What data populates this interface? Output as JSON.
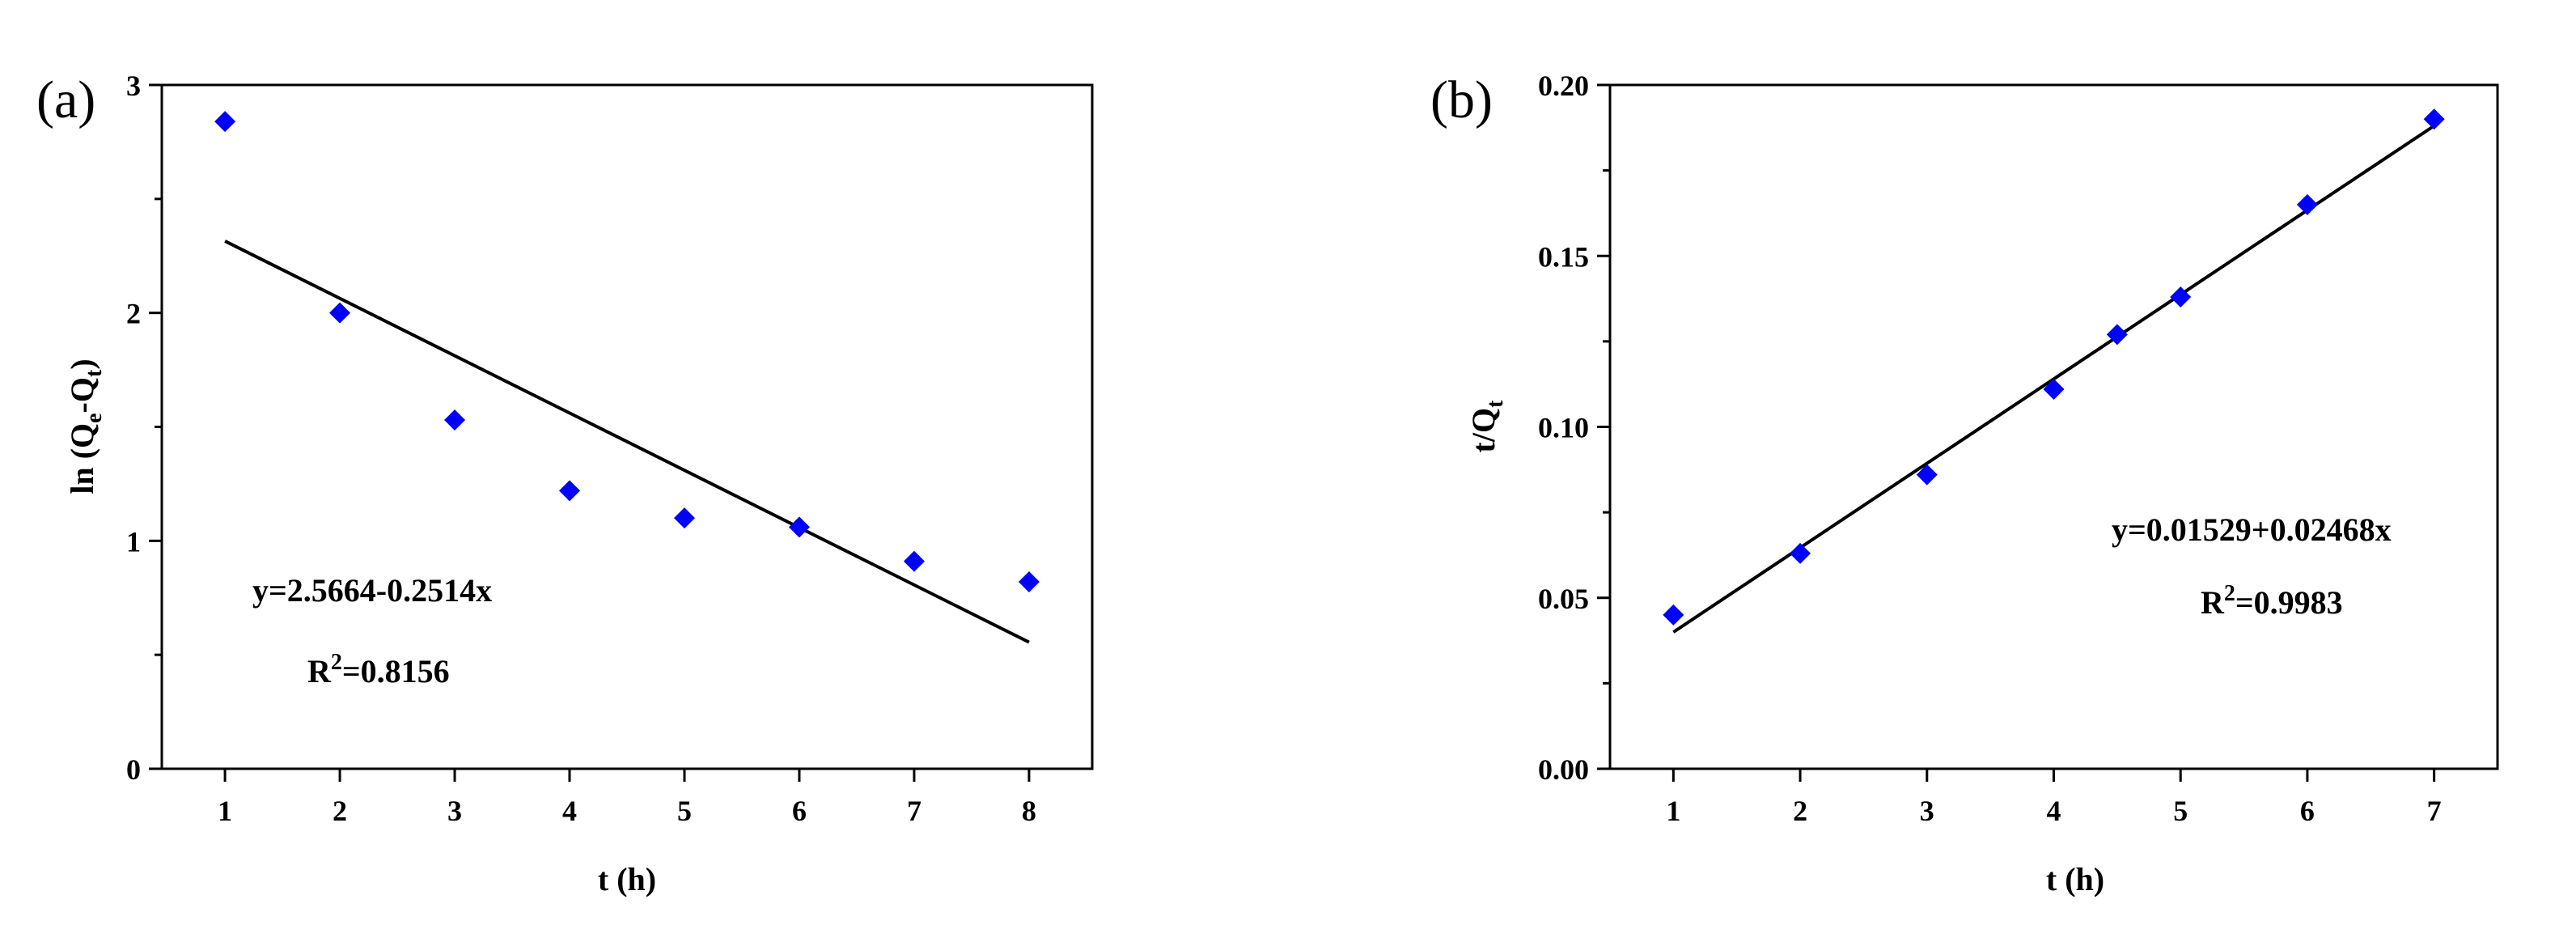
{
  "chart_data": [
    {
      "type": "scatter",
      "panel_label": "(a)",
      "title": "",
      "xlabel": "t (h)",
      "ylabel": {
        "main": "ln (Q",
        "sub1": "e",
        "mid": "-Q",
        "sub2": "t",
        "end": ")"
      },
      "xlim": [
        0.45,
        8.55
      ],
      "ylim": [
        0,
        3
      ],
      "xticks": [
        1,
        2,
        3,
        4,
        5,
        6,
        7,
        8
      ],
      "yticks": [
        0,
        1,
        2,
        3
      ],
      "series": [
        {
          "x": [
            1,
            2,
            3,
            4,
            5,
            6,
            7,
            8
          ],
          "y": [
            2.84,
            2.0,
            1.53,
            1.22,
            1.1,
            1.06,
            0.91,
            0.82
          ],
          "marker": "diamond",
          "color": "#0000ff"
        }
      ],
      "fit": {
        "intercept": 2.5664,
        "slope": -0.2514,
        "x_range": [
          1,
          8
        ],
        "color": "#000000"
      },
      "annotations": {
        "equation": "y=2.5664-0.2514x",
        "r2_prefix": "R",
        "r2_sup": "2",
        "r2_value": "=0.8156"
      },
      "grid": false
    },
    {
      "type": "scatter",
      "panel_label": "(b)",
      "title": "",
      "xlabel": "t (h)",
      "ylabel": {
        "main": "t/Q",
        "sub1": "t"
      },
      "xlim": [
        0.5,
        7.5
      ],
      "ylim": [
        0,
        0.2
      ],
      "xticks": [
        1,
        2,
        3,
        4,
        5,
        6,
        7
      ],
      "yticks": [
        0.0,
        0.05,
        0.1,
        0.15,
        0.2
      ],
      "ytick_labels": [
        "0.00",
        "0.05",
        "0.10",
        "0.15",
        "0.20"
      ],
      "series": [
        {
          "x": [
            1,
            2,
            3,
            4,
            4.5,
            5,
            6,
            7
          ],
          "y": [
            0.045,
            0.063,
            0.086,
            0.111,
            0.127,
            0.138,
            0.165,
            0.19
          ],
          "marker": "diamond",
          "color": "#0000ff"
        }
      ],
      "fit": {
        "intercept": 0.01529,
        "slope": 0.02468,
        "x_range": [
          1,
          7
        ],
        "color": "#000000"
      },
      "annotations": {
        "equation": "y=0.01529+0.02468x",
        "r2_prefix": "R",
        "r2_sup": "2",
        "r2_value": "=0.9983"
      },
      "grid": false
    }
  ]
}
